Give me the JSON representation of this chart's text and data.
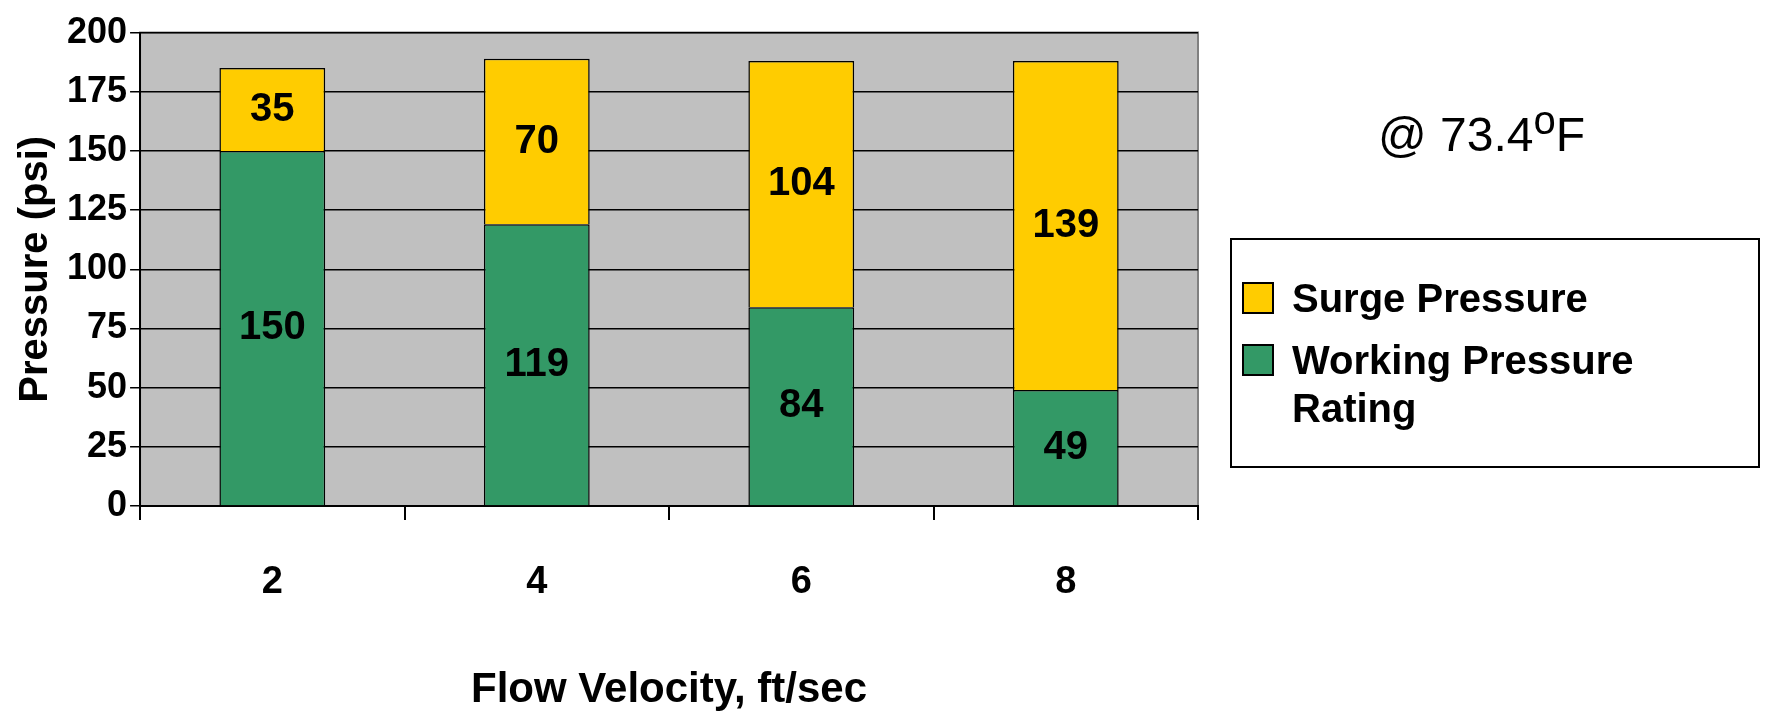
{
  "chart_data": {
    "type": "bar",
    "xlabel": "Flow Velocity, ft/sec",
    "ylabel": "Pressure (psi)",
    "categories": [
      "2",
      "4",
      "6",
      "8"
    ],
    "series": [
      {
        "name": "Working Pressure Rating",
        "color": "#339966",
        "values": [
          150,
          119,
          84,
          49
        ]
      },
      {
        "name": "Surge Pressure",
        "color": "#ffcc00",
        "values": [
          35,
          70,
          104,
          139
        ]
      }
    ],
    "stacked": true,
    "data_labels": true,
    "ylim": [
      0,
      200
    ],
    "yticks": [
      0,
      25,
      50,
      75,
      100,
      125,
      150,
      175,
      200
    ],
    "grid": "y",
    "legend": "right",
    "annotations": [
      "@ 73.4$^{o}$F"
    ]
  }
}
